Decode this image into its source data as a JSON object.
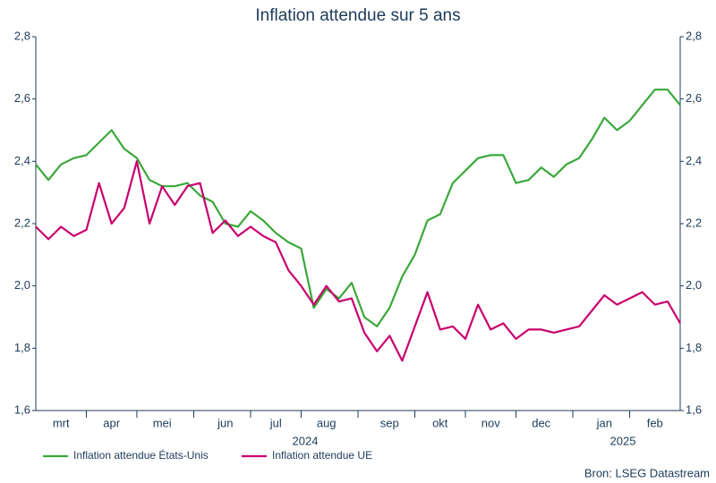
{
  "chart_data": {
    "type": "line",
    "title": "Inflation attendue sur 5 ans",
    "categories": [
      null,
      null,
      "mrt",
      null,
      null,
      null,
      "apr",
      null,
      null,
      null,
      "mei",
      null,
      null,
      null,
      null,
      "jun",
      null,
      null,
      null,
      "jul",
      null,
      null,
      null,
      "aug",
      null,
      null,
      null,
      null,
      "sep",
      null,
      null,
      null,
      "okt",
      null,
      null,
      null,
      "nov",
      null,
      null,
      null,
      "dec",
      null,
      null,
      null,
      null,
      "jan",
      null,
      null,
      null,
      "feb",
      null,
      null
    ],
    "year_labels": [
      "2024",
      "2025"
    ],
    "series": [
      {
        "name": "Inflation attendue États-Unis",
        "color": "#3aa83a",
        "values": [
          2.39,
          2.34,
          2.39,
          2.41,
          2.42,
          2.46,
          2.5,
          2.44,
          2.41,
          2.34,
          2.32,
          2.32,
          2.33,
          2.29,
          2.27,
          2.2,
          2.19,
          2.24,
          2.21,
          2.17,
          2.14,
          2.12,
          1.93,
          1.99,
          1.96,
          2.01,
          1.9,
          1.87,
          1.93,
          2.03,
          2.1,
          2.21,
          2.23,
          2.33,
          2.37,
          2.41,
          2.42,
          2.42,
          2.33,
          2.34,
          2.38,
          2.35,
          2.39,
          2.41,
          2.47,
          2.54,
          2.5,
          2.53,
          2.58,
          2.63,
          2.63,
          2.58
        ]
      },
      {
        "name": "Inflation attendue UE",
        "color": "#c8006e",
        "values": [
          2.19,
          2.15,
          2.19,
          2.16,
          2.18,
          2.33,
          2.2,
          2.25,
          2.4,
          2.2,
          2.32,
          2.26,
          2.32,
          2.33,
          2.17,
          2.21,
          2.16,
          2.19,
          2.16,
          2.14,
          2.05,
          2.0,
          1.94,
          2.0,
          1.95,
          1.96,
          1.85,
          1.79,
          1.84,
          1.76,
          1.87,
          1.98,
          1.86,
          1.87,
          1.83,
          1.94,
          1.86,
          1.88,
          1.83,
          1.86,
          1.86,
          1.85,
          1.86,
          1.87,
          1.92,
          1.97,
          1.94,
          1.96,
          1.98,
          1.94,
          1.95,
          1.88
        ]
      }
    ],
    "ylim": [
      1.6,
      2.8
    ],
    "yticks": [
      {
        "value": 1.6,
        "label": "1,6"
      },
      {
        "value": 1.8,
        "label": "1,8"
      },
      {
        "value": 2.0,
        "label": "2,0"
      },
      {
        "value": 2.2,
        "label": "2,2"
      },
      {
        "value": 2.4,
        "label": "2,4"
      },
      {
        "value": 2.6,
        "label": "2,6"
      },
      {
        "value": 2.8,
        "label": "2,8"
      }
    ],
    "y2lim": [
      1.6,
      2.8
    ],
    "y2ticks": [
      {
        "value": 1.6,
        "label": "1,6"
      },
      {
        "value": 1.8,
        "label": "1,8"
      },
      {
        "value": 2.0,
        "label": "2,0"
      },
      {
        "value": 2.2,
        "label": "2,2"
      },
      {
        "value": 2.4,
        "label": "2,4"
      },
      {
        "value": 2.6,
        "label": "2,6"
      },
      {
        "value": 2.8,
        "label": "2,8"
      }
    ],
    "legend": "bottom-left",
    "source": "Bron: LSEG Datastream"
  }
}
